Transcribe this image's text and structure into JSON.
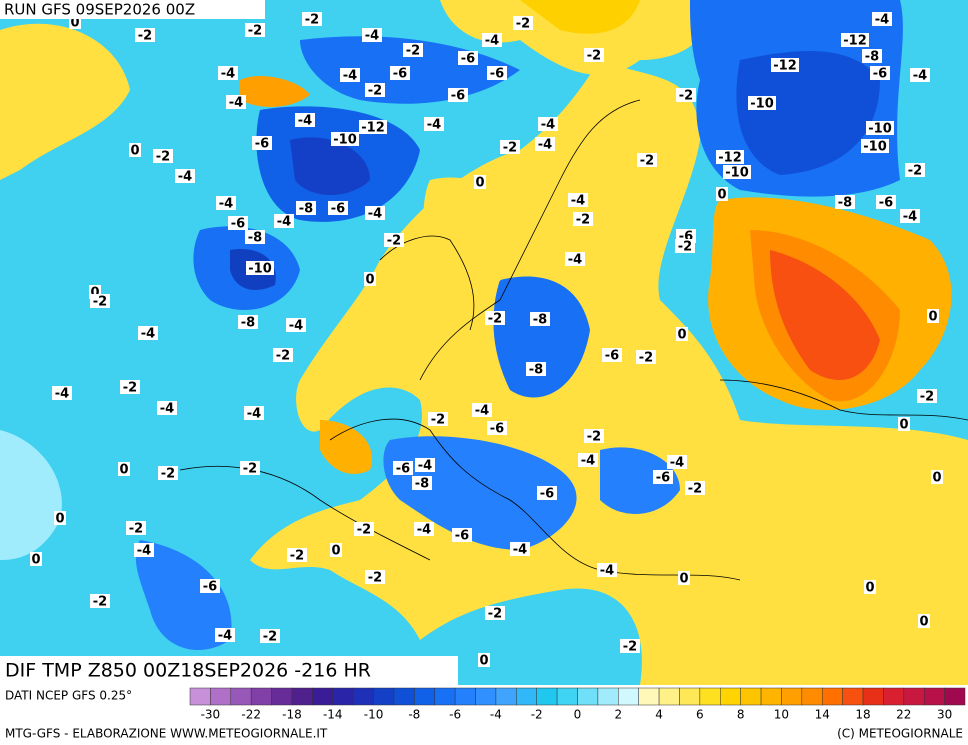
{
  "header": {
    "title": "RUN GFS 09SEP2026 00Z"
  },
  "map": {
    "caption": "DIF TMP Z850 00Z18SEP2026 -216 HR",
    "contour_labels": [
      "0",
      "-2",
      "-2",
      "-2",
      "-4",
      "-2",
      "-4",
      "-2",
      "-2",
      "-4",
      "-12",
      "-8",
      "-4",
      "-4",
      "-6",
      "-6",
      "-6",
      "-2",
      "-6",
      "-2",
      "-12",
      "-6",
      "-4",
      "-4",
      "-10",
      "-4",
      "-12",
      "-4",
      "-4",
      "-10",
      "0",
      "-6",
      "-10",
      "-4",
      "-2",
      "-10",
      "-2",
      "-2",
      "-12",
      "-10",
      "-4",
      "-2",
      "0",
      "0",
      "-4",
      "-8",
      "-6",
      "-4",
      "-4",
      "-8",
      "-6",
      "-4",
      "-6",
      "-4",
      "-2",
      "-8",
      "-2",
      "-6",
      "-2",
      "-10",
      "-4",
      "0",
      "0",
      "-2",
      "-8",
      "-4",
      "-8",
      "-2",
      "0",
      "0",
      "-4",
      "-2",
      "-6",
      "-2",
      "-8",
      "-4",
      "-2",
      "-4",
      "-4",
      "-4",
      "-2",
      "-6",
      "-2",
      "0",
      "-2",
      "-2",
      "0",
      "-2",
      "-6",
      "-4",
      "-4",
      "-4",
      "-6",
      "-2",
      "0",
      "-8",
      "-6",
      "0",
      "-2",
      "-2",
      "-4",
      "-6",
      "-4",
      "0",
      "-2",
      "0",
      "-4",
      "-2",
      "-4",
      "0",
      "-6",
      "0",
      "-2",
      "-2",
      "-4",
      "-2",
      "-2",
      "0",
      "0"
    ]
  },
  "legend": {
    "source": "DATI NCEP GFS 0.25°",
    "colors": [
      "#c890d8",
      "#b070c8",
      "#9858b8",
      "#8040a8",
      "#682c98",
      "#50208c",
      "#3a1c98",
      "#2a24a8",
      "#1e30b8",
      "#1440c8",
      "#1050d8",
      "#1060e8",
      "#1870f4",
      "#2480fc",
      "#3090ff",
      "#40a4ff",
      "#30b8f8",
      "#20c8f0",
      "#40d4f4",
      "#70e0f8",
      "#a0ecfc",
      "#d0f8ff",
      "#fff8b8",
      "#fff088",
      "#ffe858",
      "#ffe020",
      "#ffd400",
      "#ffc400",
      "#ffb400",
      "#ffa000",
      "#ff8c00",
      "#ff7000",
      "#f85010",
      "#e83018",
      "#d82030",
      "#c81840",
      "#b81048",
      "#a00850"
    ],
    "ticks": [
      "-30",
      "-22",
      "-18",
      "-14",
      "-10",
      "-8",
      "-6",
      "-4",
      "-2",
      "0",
      "2",
      "4",
      "6",
      "8",
      "10",
      "14",
      "18",
      "22",
      "30"
    ]
  },
  "footer": {
    "left": "MTG-GFS - ELABORAZIONE WWW.METEOGIORNALE.IT",
    "right": "(C) METEOGIORNALE"
  }
}
